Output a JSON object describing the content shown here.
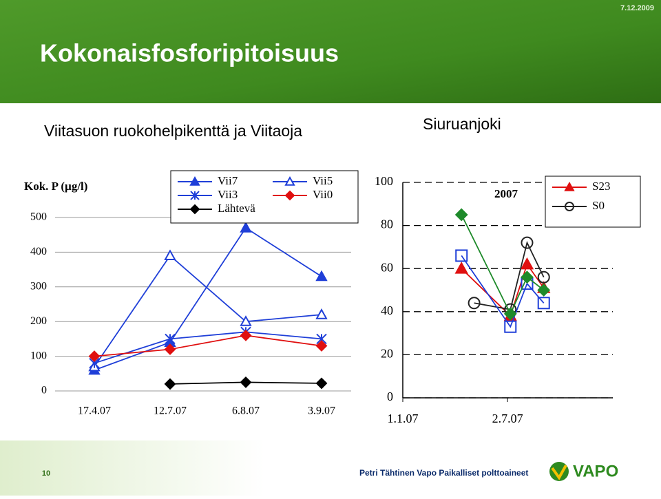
{
  "slide": {
    "date": "7.12.2009",
    "title": "Kokonaisfosforipitoisuus",
    "subtitle_left": "Viitasuon ruokohelpikenttä ja Viitaoja",
    "subtitle_right": "Siuruanjoki",
    "page": "10",
    "footer": "Petri Tähtinen Vapo Paikalliset polttoaineet",
    "logo": "VAPO"
  },
  "chart_data": [
    {
      "type": "line",
      "ylabel": "Kok. P (µg/l)",
      "categories": [
        "17.4.07",
        "12.7.07",
        "6.8.07",
        "3.9.07"
      ],
      "ylim": [
        0,
        500
      ],
      "yticks": [
        0,
        100,
        200,
        300,
        400,
        500
      ],
      "grid": true,
      "legend": "top-right",
      "series": [
        {
          "name": "Vii7",
          "color": "#1f3fd8",
          "marker": "triangle",
          "values": [
            60,
            140,
            470,
            330
          ]
        },
        {
          "name": "Vii5",
          "color": "#1f3fd8",
          "marker": "triangle-open",
          "values": [
            70,
            390,
            200,
            220
          ]
        },
        {
          "name": "Vii3",
          "color": "#1f3fd8",
          "marker": "star",
          "values": [
            80,
            150,
            170,
            150
          ]
        },
        {
          "name": "Vii0",
          "color": "#e01010",
          "marker": "diamond",
          "values": [
            100,
            120,
            160,
            130
          ]
        },
        {
          "name": "Lähtevä",
          "color": "#000000",
          "marker": "diamond",
          "values": [
            null,
            20,
            25,
            22
          ]
        }
      ]
    },
    {
      "type": "line",
      "title": "2007",
      "xlim": [
        0,
        365
      ],
      "xticks": [
        {
          "value": 0,
          "label": "1.1.07"
        },
        {
          "value": 182,
          "label": "2.7.07"
        }
      ],
      "ylim": [
        0,
        100
      ],
      "yticks": [
        0,
        20,
        40,
        60,
        80,
        100
      ],
      "grid": true,
      "legend": "top-right",
      "series": [
        {
          "name": "S23",
          "color": "#e01010",
          "marker": "triangle",
          "x": [
            102,
            187,
            216,
            245
          ],
          "values": [
            60,
            38,
            62,
            51
          ]
        },
        {
          "name": "S0",
          "color": "#222222",
          "marker": "circle-open",
          "x": [
            124,
            187,
            216,
            245
          ],
          "values": [
            44,
            41,
            72,
            56
          ]
        },
        {
          "color": "#1f3fd8",
          "marker": "square-open",
          "x": [
            102,
            187,
            216,
            245
          ],
          "values": [
            66,
            33,
            53,
            44
          ]
        },
        {
          "color": "#1e8a2a",
          "marker": "diamond",
          "x": [
            102,
            187,
            216,
            245
          ],
          "values": [
            85,
            39,
            56,
            50
          ]
        }
      ]
    }
  ]
}
